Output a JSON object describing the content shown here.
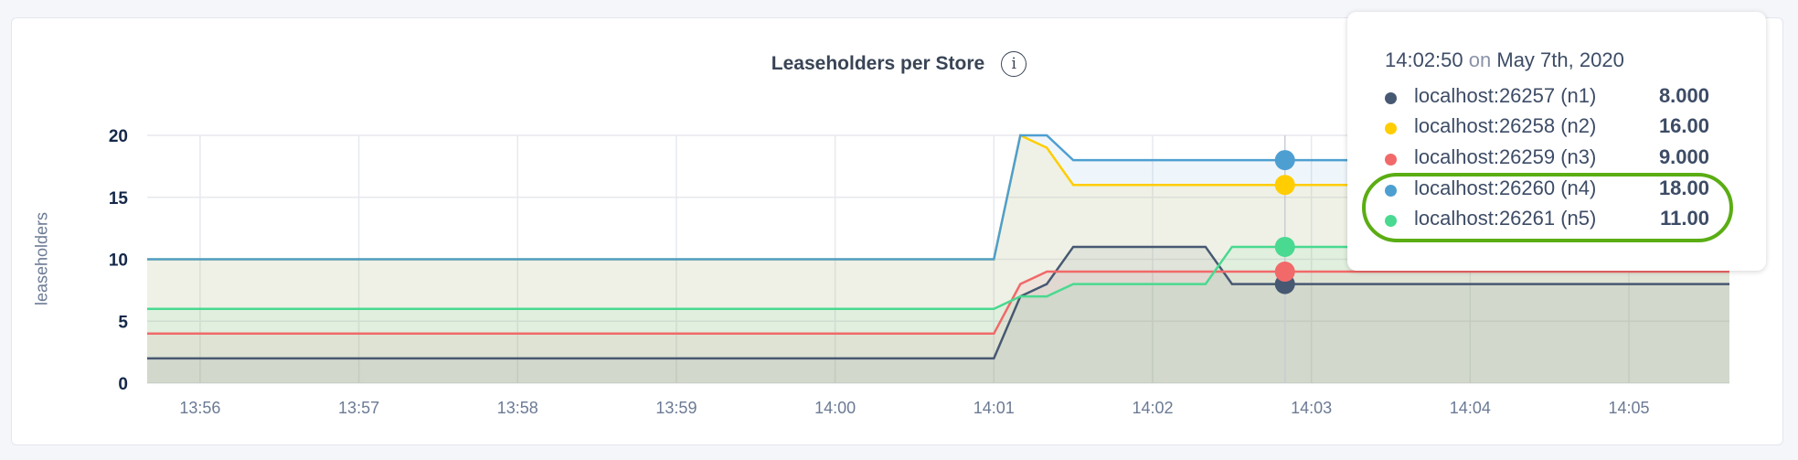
{
  "chart_data": {
    "type": "line",
    "title": "Leaseholders per Store",
    "ylabel": "leaseholders",
    "xlabel": "",
    "ylim": [
      0,
      20
    ],
    "xlim": [
      "13:55:40",
      "14:05:38"
    ],
    "yticks": [
      "0",
      "5",
      "10",
      "15",
      "20"
    ],
    "xticks": [
      "13:56",
      "13:57",
      "13:58",
      "13:59",
      "14:00",
      "14:01",
      "14:02",
      "14:03",
      "14:04",
      "14:05"
    ],
    "grid": true,
    "hover_time": "14:02:50",
    "series": [
      {
        "name": "localhost:26257 (n1)",
        "color": "#475872",
        "points": [
          [
            "13:55:40",
            2
          ],
          [
            "14:01:00",
            2
          ],
          [
            "14:01:10",
            7
          ],
          [
            "14:01:20",
            8
          ],
          [
            "14:01:30",
            11
          ],
          [
            "14:02:20",
            11
          ],
          [
            "14:02:30",
            8
          ],
          [
            "14:05:38",
            8
          ]
        ]
      },
      {
        "name": "localhost:26258 (n2)",
        "color": "#ffcd02",
        "points": [
          [
            "13:55:40",
            10
          ],
          [
            "14:01:00",
            10
          ],
          [
            "14:01:10",
            20
          ],
          [
            "14:01:20",
            19
          ],
          [
            "14:01:30",
            16
          ],
          [
            "14:05:38",
            16
          ]
        ]
      },
      {
        "name": "localhost:26259 (n3)",
        "color": "#f16969",
        "points": [
          [
            "13:55:40",
            4
          ],
          [
            "14:01:00",
            4
          ],
          [
            "14:01:10",
            8
          ],
          [
            "14:01:20",
            9
          ],
          [
            "14:05:38",
            9
          ]
        ]
      },
      {
        "name": "localhost:26260 (n4)",
        "color": "#4e9fd1",
        "points": [
          [
            "13:55:40",
            10
          ],
          [
            "14:01:00",
            10
          ],
          [
            "14:01:10",
            20
          ],
          [
            "14:01:20",
            20
          ],
          [
            "14:01:30",
            18
          ],
          [
            "14:05:38",
            18
          ]
        ]
      },
      {
        "name": "localhost:26261 (n5)",
        "color": "#49d990",
        "points": [
          [
            "13:55:40",
            6
          ],
          [
            "14:01:00",
            6
          ],
          [
            "14:01:10",
            7
          ],
          [
            "14:01:20",
            7
          ],
          [
            "14:01:30",
            8
          ],
          [
            "14:02:20",
            8
          ],
          [
            "14:02:30",
            11
          ],
          [
            "14:05:38",
            11
          ]
        ]
      }
    ]
  },
  "tooltip": {
    "time": "14:02:50",
    "on": "on",
    "date": "May 7th, 2020",
    "rows": [
      {
        "label": "localhost:26257 (n1)",
        "value": "8.000",
        "color": "#475872"
      },
      {
        "label": "localhost:26258 (n2)",
        "value": "16.00",
        "color": "#ffcd02"
      },
      {
        "label": "localhost:26259 (n3)",
        "value": "9.000",
        "color": "#f16969"
      },
      {
        "label": "localhost:26260 (n4)",
        "value": "18.00",
        "color": "#4e9fd1"
      },
      {
        "label": "localhost:26261 (n5)",
        "value": "11.00",
        "color": "#49d990"
      }
    ],
    "highlight_color": "#5aad13"
  },
  "info_icon": "info-icon"
}
